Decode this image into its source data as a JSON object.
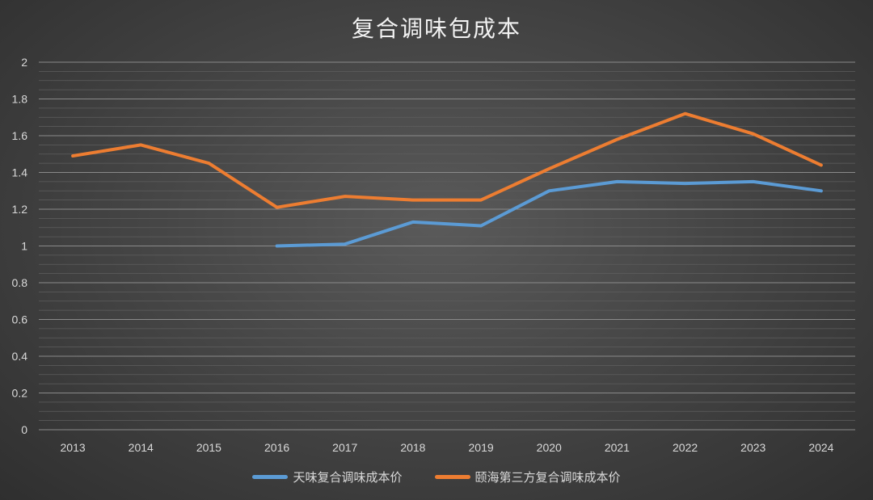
{
  "chart_data": {
    "type": "line",
    "title": "复合调味包成本",
    "categories": [
      "2013",
      "2014",
      "2015",
      "2016",
      "2017",
      "2018",
      "2019",
      "2020",
      "2021",
      "2022",
      "2023",
      "2024"
    ],
    "y_ticks": [
      "0",
      "0.2",
      "0.4",
      "0.6",
      "0.8",
      "1",
      "1.2",
      "1.4",
      "1.6",
      "1.8",
      "2"
    ],
    "ylim": [
      0,
      2
    ],
    "grid": true,
    "legend_position": "bottom",
    "series": [
      {
        "name": "天味复合调味成本价",
        "color": "#5b9bd5",
        "values": [
          null,
          null,
          null,
          1.0,
          1.01,
          1.13,
          1.11,
          1.3,
          1.35,
          1.34,
          1.35,
          1.3
        ]
      },
      {
        "name": "颐海第三方复合调味成本价",
        "color": "#ed7d31",
        "values": [
          1.49,
          1.55,
          1.45,
          1.21,
          1.27,
          1.25,
          1.25,
          1.42,
          1.58,
          1.72,
          1.61,
          1.44
        ]
      }
    ]
  }
}
